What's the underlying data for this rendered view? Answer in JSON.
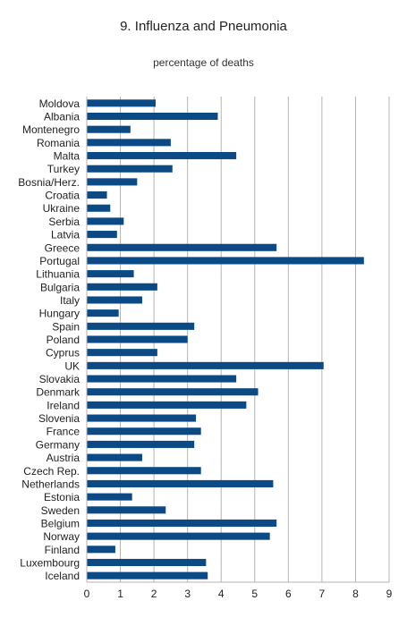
{
  "chart_data": {
    "type": "bar",
    "orientation": "horizontal",
    "title": "9. Influenza and Pneumonia",
    "subtitle": "percentage of deaths",
    "xlabel": "",
    "ylabel": "",
    "xlim": [
      0,
      9
    ],
    "xticks": [
      "0",
      "1",
      "2",
      "3",
      "4",
      "5",
      "6",
      "7",
      "8",
      "9"
    ],
    "grid": "vertical",
    "bar_color": "#0b4a84",
    "categories": [
      "Moldova",
      "Albania",
      "Montenegro",
      "Romania",
      "Malta",
      "Turkey",
      "Bosnia/Herz.",
      "Croatia",
      "Ukraine",
      "Serbia",
      "Latvia",
      "Greece",
      "Portugal",
      "Lithuania",
      "Bulgaria",
      "Italy",
      "Hungary",
      "Spain",
      "Poland",
      "Cyprus",
      "UK",
      "Slovakia",
      "Denmark",
      "Ireland",
      "Slovenia",
      "France",
      "Germany",
      "Austria",
      "Czech Rep.",
      "Netherlands",
      "Estonia",
      "Sweden",
      "Belgium",
      "Norway",
      "Finland",
      "Luxembourg",
      "Iceland"
    ],
    "values": [
      2.05,
      3.9,
      1.3,
      2.5,
      4.45,
      2.55,
      1.5,
      0.6,
      0.7,
      1.1,
      0.9,
      5.65,
      8.25,
      1.4,
      2.1,
      1.65,
      0.95,
      3.2,
      3.0,
      2.1,
      7.05,
      4.45,
      5.1,
      4.75,
      3.25,
      3.4,
      3.2,
      1.65,
      3.4,
      5.55,
      1.35,
      2.35,
      5.65,
      5.45,
      0.85,
      3.55,
      3.6
    ]
  }
}
